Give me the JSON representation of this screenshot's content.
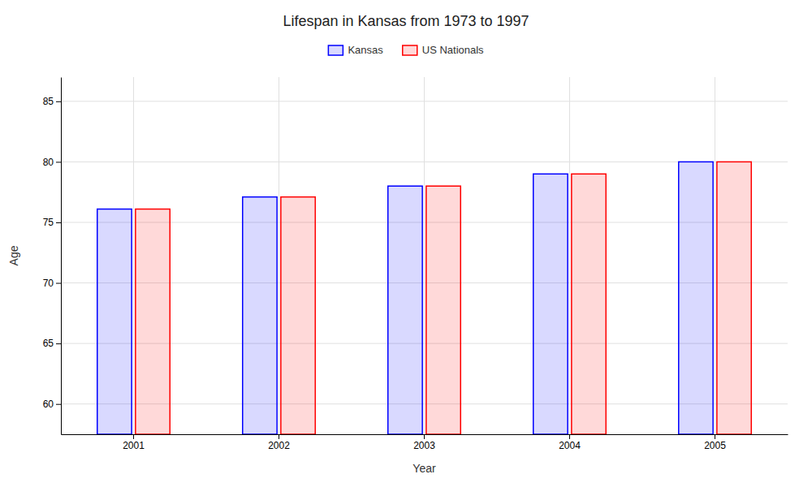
{
  "chart_data": {
    "type": "bar",
    "title": "Lifespan in Kansas from 1973 to 1997",
    "xlabel": "Year",
    "ylabel": "Age",
    "categories": [
      "2001",
      "2002",
      "2003",
      "2004",
      "2005"
    ],
    "series": [
      {
        "name": "Kansas",
        "color": "#0000ff",
        "values": [
          76.1,
          77.1,
          78.0,
          79.0,
          80.0
        ]
      },
      {
        "name": "US Nationals",
        "color": "#ff0000",
        "values": [
          76.1,
          77.1,
          78.0,
          79.0,
          80.0
        ]
      }
    ],
    "ylim": [
      57.5,
      87
    ],
    "yticks": [
      60,
      65,
      70,
      75,
      80,
      85
    ],
    "grid": true,
    "legend": "top"
  }
}
